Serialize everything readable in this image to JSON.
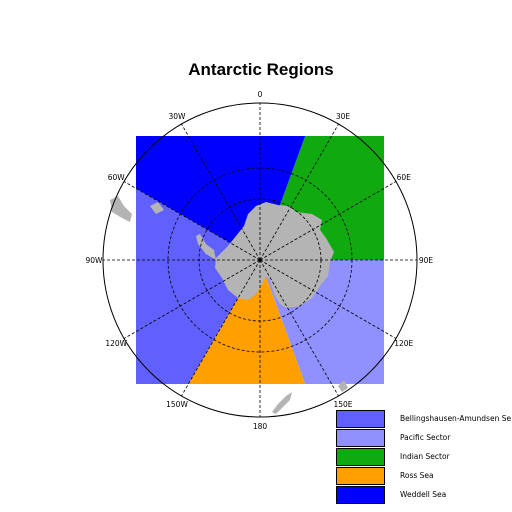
{
  "title": "Antarctic Regions",
  "longitude_labels": [
    {
      "lon": 0,
      "text": "0"
    },
    {
      "lon": 30,
      "text": "30E"
    },
    {
      "lon": 60,
      "text": "60E"
    },
    {
      "lon": 90,
      "text": "90E"
    },
    {
      "lon": 120,
      "text": "120E"
    },
    {
      "lon": 150,
      "text": "150E"
    },
    {
      "lon": 180,
      "text": "180"
    },
    {
      "lon": 210,
      "text": "150W"
    },
    {
      "lon": 240,
      "text": "120W"
    },
    {
      "lon": 270,
      "text": "90W"
    },
    {
      "lon": 300,
      "text": "60W"
    },
    {
      "lon": 330,
      "text": "30W"
    }
  ],
  "regions": [
    {
      "name": "Bellingshausen-Amundsen Sea",
      "color": "#6060ff",
      "lon_start": 210,
      "lon_end": 300
    },
    {
      "name": "Pacific Sector",
      "color": "#9090ff",
      "lon_start": 90,
      "lon_end": 160
    },
    {
      "name": "Indian Sector",
      "color": "#10aa10",
      "lon_start": 20,
      "lon_end": 90
    },
    {
      "name": "Ross Sea",
      "color": "#ffa000",
      "lon_start": 160,
      "lon_end": 210
    },
    {
      "name": "Weddell Sea",
      "color": "#0000ff",
      "lon_start": 300,
      "lon_end": 380
    }
  ],
  "legend": [
    {
      "label": "Bellingshausen-Amundsen Se",
      "color": "#6060ff"
    },
    {
      "label": "Pacific Sector",
      "color": "#9090ff"
    },
    {
      "label": "Indian Sector",
      "color": "#10aa10"
    },
    {
      "label": "Ross Sea",
      "color": "#ffa000"
    },
    {
      "label": "Weddell Sea",
      "color": "#0000ff"
    }
  ],
  "land_color": "#b4b4b4",
  "grid": "dashed"
}
